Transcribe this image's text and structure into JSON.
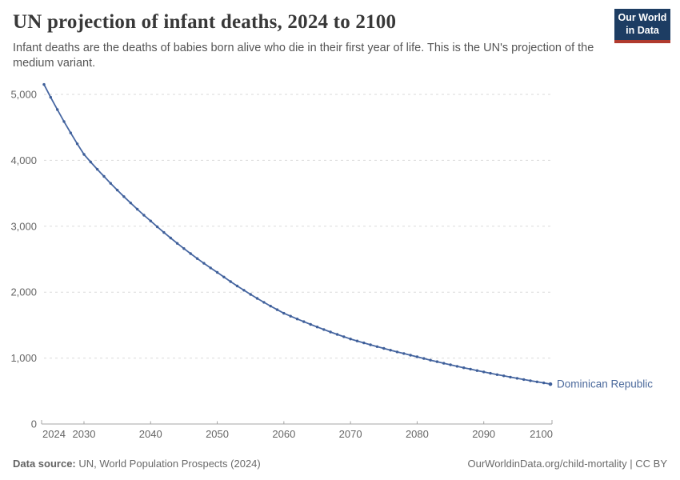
{
  "header": {
    "title": "UN projection of infant deaths, 2024 to 2100",
    "subtitle": "Infant deaths are the deaths of babies born alive who die in their first year of life. This is the UN's projection of the medium variant.",
    "logo": {
      "line1": "Our World",
      "line2": "in Data"
    }
  },
  "footer": {
    "datasource_label": "Data source:",
    "datasource_value": " UN, World Population Prospects (2024)",
    "attribution": "OurWorldinData.org/child-mortality | CC BY"
  },
  "colors": {
    "line": "#4767a2",
    "marker": "#3f5f99",
    "entity_label": "#4c6a9c",
    "gridline": "#dadada",
    "axis": "#a5a5a5",
    "tick_label": "#666666",
    "title": "#383838",
    "subtitle": "#555555",
    "logo_bg": "#1d3d63",
    "logo_red": "#b03a2e"
  },
  "chart_data": {
    "type": "line",
    "title": "UN projection of infant deaths, 2024 to 2100",
    "subtitle": "Infant deaths are the deaths of babies born alive who die in their first year of life. This is the UN's projection of the medium variant.",
    "xlabel": "",
    "ylabel": "",
    "xlim": [
      2024,
      2100
    ],
    "ylim": [
      0,
      5000
    ],
    "grid": "horizontal-dashed",
    "legend_position": "end-of-line-label",
    "x_ticks": [
      {
        "year": 2024,
        "label": "2024"
      },
      {
        "year": 2030,
        "label": "2030"
      },
      {
        "year": 2040,
        "label": "2040"
      },
      {
        "year": 2050,
        "label": "2050"
      },
      {
        "year": 2060,
        "label": "2060"
      },
      {
        "year": 2070,
        "label": "2070"
      },
      {
        "year": 2080,
        "label": "2080"
      },
      {
        "year": 2090,
        "label": "2090"
      },
      {
        "year": 2100,
        "label": "2100"
      }
    ],
    "y_ticks": [
      {
        "value": 0,
        "label": "0"
      },
      {
        "value": 1000,
        "label": "1,000"
      },
      {
        "value": 2000,
        "label": "2,000"
      },
      {
        "value": 3000,
        "label": "3,000"
      },
      {
        "value": 4000,
        "label": "4,000"
      },
      {
        "value": 5000,
        "label": "5,000"
      }
    ],
    "series": [
      {
        "name": "Dominican Republic",
        "years": [
          2024,
          2025,
          2026,
          2027,
          2028,
          2029,
          2030,
          2031,
          2032,
          2033,
          2034,
          2035,
          2036,
          2037,
          2038,
          2039,
          2040,
          2041,
          2042,
          2043,
          2044,
          2045,
          2046,
          2047,
          2048,
          2049,
          2050,
          2051,
          2052,
          2053,
          2054,
          2055,
          2056,
          2057,
          2058,
          2059,
          2060,
          2061,
          2062,
          2063,
          2064,
          2065,
          2066,
          2067,
          2068,
          2069,
          2070,
          2071,
          2072,
          2073,
          2074,
          2075,
          2076,
          2077,
          2078,
          2079,
          2080,
          2081,
          2082,
          2083,
          2084,
          2085,
          2086,
          2087,
          2088,
          2089,
          2090,
          2091,
          2092,
          2093,
          2094,
          2095,
          2096,
          2097,
          2098,
          2099,
          2100
        ],
        "values": [
          5150,
          4956,
          4769,
          4589,
          4416,
          4250,
          4090,
          3975,
          3864,
          3756,
          3651,
          3549,
          3449,
          3353,
          3259,
          3168,
          3080,
          2991,
          2905,
          2821,
          2740,
          2661,
          2585,
          2510,
          2438,
          2368,
          2300,
          2229,
          2160,
          2093,
          2029,
          1966,
          1905,
          1846,
          1789,
          1734,
          1680,
          1636,
          1593,
          1552,
          1511,
          1472,
          1433,
          1396,
          1359,
          1324,
          1290,
          1260,
          1231,
          1202,
          1174,
          1147,
          1120,
          1094,
          1069,
          1044,
          1020,
          994,
          969,
          945,
          921,
          898,
          875,
          853,
          832,
          811,
          790,
          769,
          749,
          730,
          711,
          693,
          675,
          657,
          640,
          624,
          605
        ]
      }
    ]
  }
}
